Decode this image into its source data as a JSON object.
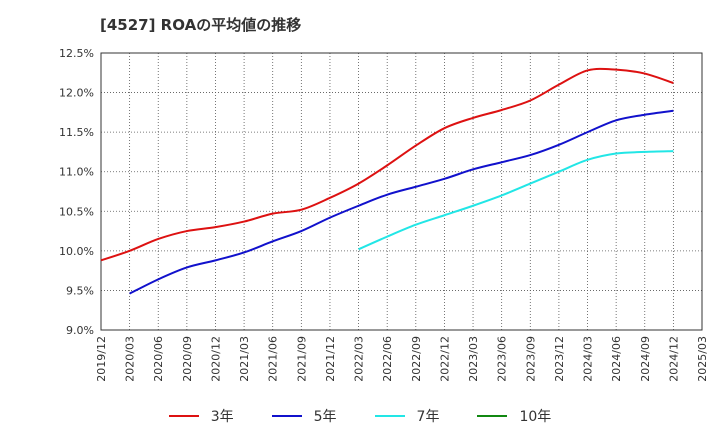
{
  "title": "[4527]  ROAの平均値の推移",
  "chart_data": {
    "type": "line",
    "title": "[4527]  ROAの平均値の推移",
    "xlabel": "",
    "ylabel": "",
    "ylim": [
      9.0,
      12.5
    ],
    "yticks": [
      9.0,
      9.5,
      10.0,
      10.5,
      11.0,
      11.5,
      12.0,
      12.5
    ],
    "ytick_labels": [
      "9.0%",
      "9.5%",
      "10.0%",
      "10.5%",
      "11.0%",
      "11.5%",
      "12.0%",
      "12.5%"
    ],
    "categories": [
      "2019/12",
      "2020/03",
      "2020/06",
      "2020/09",
      "2020/12",
      "2021/03",
      "2021/06",
      "2021/09",
      "2021/12",
      "2022/03",
      "2022/06",
      "2022/09",
      "2022/12",
      "2023/03",
      "2023/06",
      "2023/09",
      "2023/12",
      "2024/03",
      "2024/06",
      "2024/09",
      "2024/12",
      "2025/03"
    ],
    "grid": true,
    "legend_position": "bottom",
    "series": [
      {
        "name": "3年",
        "color": "#dd1111",
        "values": [
          9.88,
          10.0,
          10.15,
          10.25,
          10.3,
          10.37,
          10.47,
          10.52,
          10.67,
          10.85,
          11.08,
          11.33,
          11.55,
          11.68,
          11.78,
          11.9,
          12.1,
          12.28,
          12.29,
          12.24,
          12.12,
          null
        ]
      },
      {
        "name": "5年",
        "color": "#1111cc",
        "values": [
          null,
          9.46,
          9.64,
          9.79,
          9.88,
          9.98,
          10.12,
          10.25,
          10.42,
          10.57,
          10.71,
          10.81,
          10.91,
          11.03,
          11.12,
          11.21,
          11.34,
          11.5,
          11.65,
          11.72,
          11.77,
          null
        ]
      },
      {
        "name": "7年",
        "color": "#22e6e6",
        "values": [
          null,
          null,
          null,
          null,
          null,
          null,
          null,
          null,
          null,
          10.02,
          10.18,
          10.33,
          10.45,
          10.57,
          10.7,
          10.85,
          11.0,
          11.15,
          11.23,
          11.25,
          11.26,
          null
        ]
      },
      {
        "name": "10年",
        "color": "#118811",
        "values": [
          null,
          null,
          null,
          null,
          null,
          null,
          null,
          null,
          null,
          null,
          null,
          null,
          null,
          null,
          null,
          null,
          null,
          null,
          null,
          null,
          null,
          null
        ]
      }
    ]
  }
}
